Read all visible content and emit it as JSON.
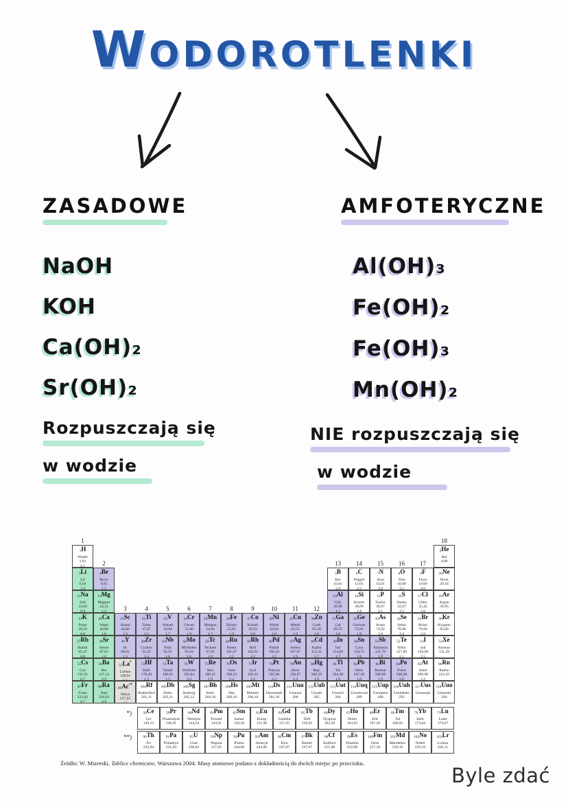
{
  "page": {
    "title": "WODOROTLENKI",
    "watermark": "Byle zdać"
  },
  "colors": {
    "title_blue": "#2456a6",
    "title_shadow": "#a3c3ec",
    "mint": "#b4e9d2",
    "lavender": "#cdc7ef",
    "table_alkali": "#abe6c6",
    "table_metal": "#c8c3e8",
    "table_special": "#e3e1de"
  },
  "left_column": {
    "heading": "ZASADOWE",
    "formulas": [
      "NaOH",
      "KOH",
      "Ca(OH)₂",
      "Sr(OH)₂"
    ],
    "note_line1": "Rozpuszczają się",
    "note_line2": "w wodzie"
  },
  "right_column": {
    "heading": "AMFOTERYCZNE",
    "formulas": [
      "Al(OH)₃",
      "Fe(OH)₂",
      "Fe(OH)₃",
      "Mn(OH)₂"
    ],
    "note_line1": "NIE rozpuszczają się",
    "note_line2": "w wodzie"
  },
  "periodic_table": {
    "source_prefix": "Źródło: W. Mizerski, ",
    "source_italic": "Tablice chemiczne",
    "source_suffix": ", Warszawa 2004. Masy atomowe podano z dokładnością do dwóch miejsc po przecinku.",
    "group_labels": [
      [
        "1",
        1,
        1
      ],
      [
        "18",
        1,
        18
      ],
      [
        "2",
        2,
        2
      ],
      [
        "13",
        2,
        13
      ],
      [
        "14",
        2,
        14
      ],
      [
        "15",
        2,
        15
      ],
      [
        "16",
        2,
        16
      ],
      [
        "17",
        2,
        17
      ],
      [
        "3",
        4,
        3
      ],
      [
        "4",
        4,
        4
      ],
      [
        "5",
        4,
        5
      ],
      [
        "6",
        4,
        6
      ],
      [
        "7",
        4,
        7
      ],
      [
        "8",
        4,
        8
      ],
      [
        "9",
        4,
        9
      ],
      [
        "10",
        4,
        10
      ],
      [
        "11",
        4,
        11
      ],
      [
        "12",
        4,
        12
      ]
    ],
    "element_fields": [
      "number",
      "symbol",
      "name",
      "mass",
      "electronegativity",
      "period",
      "column",
      "color",
      "sup"
    ],
    "elements": [
      [
        1,
        "H",
        "Wodór",
        "1,01",
        "2,1",
        1,
        1,
        "plain",
        ""
      ],
      [
        2,
        "He",
        "Hel",
        "4,00",
        "",
        1,
        18,
        "plain",
        ""
      ],
      [
        3,
        "Li",
        "Lit",
        "6,94",
        "1,0",
        2,
        1,
        "alkali",
        ""
      ],
      [
        4,
        "Be",
        "Beryl",
        "9,01",
        "1,5",
        2,
        2,
        "metal",
        ""
      ],
      [
        5,
        "B",
        "Bor",
        "10,81",
        "2,0",
        2,
        13,
        "plain",
        ""
      ],
      [
        6,
        "C",
        "Węgiel",
        "12,01",
        "2,5",
        2,
        14,
        "plain",
        ""
      ],
      [
        7,
        "N",
        "Azot",
        "14,01",
        "3,0",
        2,
        15,
        "plain",
        ""
      ],
      [
        8,
        "O",
        "Tlen",
        "16,00",
        "3,5",
        2,
        16,
        "plain",
        ""
      ],
      [
        9,
        "F",
        "Fluor",
        "19,00",
        "4,0",
        2,
        17,
        "plain",
        ""
      ],
      [
        10,
        "Ne",
        "Neon",
        "20,18",
        "",
        2,
        18,
        "plain",
        ""
      ],
      [
        11,
        "Na",
        "Sód",
        "23,00",
        "0,9",
        3,
        1,
        "alkali",
        ""
      ],
      [
        12,
        "Mg",
        "Magnez",
        "24,31",
        "1,2",
        3,
        2,
        "alkali",
        ""
      ],
      [
        13,
        "Al",
        "Glin",
        "26,98",
        "1,5",
        3,
        13,
        "metal",
        ""
      ],
      [
        14,
        "Si",
        "Krzem",
        "28,09",
        "1,8",
        3,
        14,
        "plain",
        ""
      ],
      [
        15,
        "P",
        "Fosfor",
        "30,97",
        "2,1",
        3,
        15,
        "plain",
        ""
      ],
      [
        16,
        "S",
        "Siarka",
        "32,07",
        "2,5",
        3,
        16,
        "plain",
        ""
      ],
      [
        17,
        "Cl",
        "Chlor",
        "35,45",
        "3,0",
        3,
        17,
        "plain",
        ""
      ],
      [
        18,
        "Ar",
        "Argon",
        "39,95",
        "",
        3,
        18,
        "plain",
        ""
      ],
      [
        19,
        "K",
        "Potas",
        "39,10",
        "0,8",
        4,
        1,
        "alkali",
        ""
      ],
      [
        20,
        "Ca",
        "Wapń",
        "40,08",
        "1,0",
        4,
        2,
        "alkali",
        ""
      ],
      [
        21,
        "Sc",
        "Skand",
        "44,96",
        "1,3",
        4,
        3,
        "metal",
        ""
      ],
      [
        22,
        "Ti",
        "Tytan",
        "47,87",
        "1,5",
        4,
        4,
        "metal",
        ""
      ],
      [
        23,
        "V",
        "Wanad",
        "50,94",
        "1,7",
        4,
        5,
        "metal",
        ""
      ],
      [
        24,
        "Cr",
        "Chrom",
        "52,00",
        "1,9",
        4,
        6,
        "metal",
        ""
      ],
      [
        25,
        "Mn",
        "Mangan",
        "54,94",
        "1,7",
        4,
        7,
        "metal",
        ""
      ],
      [
        26,
        "Fe",
        "Żelazo",
        "55,85",
        "1,9",
        4,
        8,
        "metal",
        ""
      ],
      [
        27,
        "Co",
        "Kobalt",
        "58,93",
        "2,0",
        4,
        9,
        "metal",
        ""
      ],
      [
        28,
        "Ni",
        "Nikiel",
        "58,69",
        "2,0",
        4,
        10,
        "metal",
        ""
      ],
      [
        29,
        "Cu",
        "Miedź",
        "63,55",
        "1,9",
        4,
        11,
        "metal",
        ""
      ],
      [
        30,
        "Zn",
        "Cynk",
        "65,39",
        "1,6",
        4,
        12,
        "metal",
        ""
      ],
      [
        31,
        "Ga",
        "Gal",
        "69,72",
        "1,6",
        4,
        13,
        "metal",
        ""
      ],
      [
        32,
        "Ge",
        "German",
        "72,61",
        "1,8",
        4,
        14,
        "metal",
        ""
      ],
      [
        33,
        "As",
        "Arsen",
        "74,92",
        "2,0",
        4,
        15,
        "plain",
        ""
      ],
      [
        34,
        "Se",
        "Selen",
        "78,96",
        "2,4",
        4,
        16,
        "plain",
        ""
      ],
      [
        35,
        "Br",
        "Brom",
        "79,90",
        "2,8",
        4,
        17,
        "plain",
        ""
      ],
      [
        36,
        "Kr",
        "Krypton",
        "83,80",
        "",
        4,
        18,
        "plain",
        ""
      ],
      [
        37,
        "Rb",
        "Rubid",
        "85,47",
        "0,8",
        5,
        1,
        "alkali",
        ""
      ],
      [
        38,
        "Sr",
        "Stront",
        "87,62",
        "1,0",
        5,
        2,
        "alkali",
        ""
      ],
      [
        39,
        "Y",
        "Itr",
        "88,91",
        "1,3",
        5,
        3,
        "metal",
        ""
      ],
      [
        40,
        "Zr",
        "Cyrkon",
        "91,22",
        "1,4",
        5,
        4,
        "metal",
        ""
      ],
      [
        41,
        "Nb",
        "Niob",
        "92,91",
        "1,6",
        5,
        5,
        "metal",
        ""
      ],
      [
        42,
        "Mo",
        "Molibden",
        "95,94",
        "2,0",
        5,
        6,
        "metal",
        ""
      ],
      [
        43,
        "Tc",
        "Technet",
        "97,91",
        "1,9",
        5,
        7,
        "metal",
        ""
      ],
      [
        44,
        "Ru",
        "Ruten",
        "101,07",
        "2,2",
        5,
        8,
        "metal",
        ""
      ],
      [
        45,
        "Rh",
        "Rod",
        "102,91",
        "2,2",
        5,
        9,
        "metal",
        ""
      ],
      [
        46,
        "Pd",
        "Pallad",
        "106,42",
        "2,2",
        5,
        10,
        "metal",
        ""
      ],
      [
        47,
        "Ag",
        "Srebro",
        "107,87",
        "1,9",
        5,
        11,
        "metal",
        ""
      ],
      [
        48,
        "Cd",
        "Kadm",
        "112,41",
        "1,7",
        5,
        12,
        "metal",
        ""
      ],
      [
        49,
        "In",
        "Ind",
        "114,82",
        "1,7",
        5,
        13,
        "metal",
        ""
      ],
      [
        50,
        "Sn",
        "Cyna",
        "118,71",
        "1,8",
        5,
        14,
        "metal",
        ""
      ],
      [
        51,
        "Sb",
        "Antymon",
        "121,76",
        "1,9",
        5,
        15,
        "metal",
        ""
      ],
      [
        52,
        "Te",
        "Tellur",
        "127,60",
        "2,1",
        5,
        16,
        "plain",
        ""
      ],
      [
        53,
        "I",
        "Jod",
        "126,90",
        "2,5",
        5,
        17,
        "plain",
        ""
      ],
      [
        54,
        "Xe",
        "Ksenon",
        "131,29",
        "",
        5,
        18,
        "plain",
        ""
      ],
      [
        55,
        "Cs",
        "Cez",
        "132,91",
        "0,7",
        6,
        1,
        "alkali",
        ""
      ],
      [
        56,
        "Ba",
        "Bar",
        "137,33",
        "0,9",
        6,
        2,
        "alkali",
        ""
      ],
      [
        57,
        "La",
        "Lantan",
        "138,91",
        "1,1",
        6,
        3,
        "special",
        "*"
      ],
      [
        72,
        "Hf",
        "Hafn",
        "178,49",
        "1,3",
        6,
        4,
        "metal",
        ""
      ],
      [
        73,
        "Ta",
        "Tantal",
        "180,95",
        "1,5",
        6,
        5,
        "metal",
        ""
      ],
      [
        74,
        "W",
        "Wolfram",
        "183,84",
        "2,0",
        6,
        6,
        "metal",
        ""
      ],
      [
        75,
        "Re",
        "Ren",
        "186,21",
        "1,9",
        6,
        7,
        "metal",
        ""
      ],
      [
        76,
        "Os",
        "Osm",
        "190,23",
        "2,2",
        6,
        8,
        "metal",
        ""
      ],
      [
        77,
        "Ir",
        "Iryd",
        "192,22",
        "2,2",
        6,
        9,
        "metal",
        ""
      ],
      [
        78,
        "Pt",
        "Platyna",
        "195,08",
        "2,2",
        6,
        10,
        "metal",
        ""
      ],
      [
        79,
        "Au",
        "Złoto",
        "196,97",
        "2,4",
        6,
        11,
        "metal",
        ""
      ],
      [
        80,
        "Hg",
        "Rtęć",
        "200,59",
        "1,9",
        6,
        12,
        "metal",
        ""
      ],
      [
        81,
        "Tl",
        "Tal",
        "204,38",
        "1,8",
        6,
        13,
        "metal",
        ""
      ],
      [
        82,
        "Pb",
        "Ołów",
        "207,20",
        "1,8",
        6,
        14,
        "metal",
        ""
      ],
      [
        83,
        "Bi",
        "Bizmut",
        "208,98",
        "1,9",
        6,
        15,
        "metal",
        ""
      ],
      [
        84,
        "Po",
        "Polon",
        "208,98",
        "2,0",
        6,
        16,
        "metal",
        ""
      ],
      [
        85,
        "At",
        "Astat",
        "209,99",
        "2,2",
        6,
        17,
        "plain",
        ""
      ],
      [
        86,
        "Rn",
        "Radon",
        "222,02",
        "",
        6,
        18,
        "plain",
        ""
      ],
      [
        87,
        "Fr",
        "Frans",
        "223,02",
        "0,7",
        7,
        1,
        "alkali",
        ""
      ],
      [
        88,
        "Ra",
        "Rad",
        "226,03",
        "0,9",
        7,
        2,
        "alkali",
        ""
      ],
      [
        89,
        "Ac",
        "Aktyn",
        "227,03",
        "1,1",
        7,
        3,
        "special",
        "**"
      ],
      [
        104,
        "Rf",
        "Rutherford",
        "261,11",
        "",
        7,
        4,
        "plain",
        ""
      ],
      [
        105,
        "Db",
        "Dubn",
        "263,11",
        "",
        7,
        5,
        "plain",
        ""
      ],
      [
        106,
        "Sg",
        "Seaborg",
        "265,12",
        "",
        7,
        6,
        "plain",
        ""
      ],
      [
        107,
        "Bh",
        "Bohr",
        "264,10",
        "",
        7,
        7,
        "plain",
        ""
      ],
      [
        108,
        "Hs",
        "Has",
        "269,10",
        "",
        7,
        8,
        "plain",
        ""
      ],
      [
        109,
        "Mt",
        "Meitner",
        "268,10",
        "",
        7,
        9,
        "plain",
        ""
      ],
      [
        110,
        "Ds",
        "Darmstadt",
        "281,10",
        "",
        7,
        10,
        "plain",
        ""
      ],
      [
        111,
        "Uuu",
        "Ununun",
        "280",
        "",
        7,
        11,
        "plain",
        ""
      ],
      [
        112,
        "Uub",
        "Ununb",
        "285",
        "",
        7,
        12,
        "plain",
        ""
      ],
      [
        113,
        "Uut",
        "Ununtri",
        "284",
        "",
        7,
        13,
        "plain",
        ""
      ],
      [
        114,
        "Uuq",
        "Ununkwad",
        "289",
        "",
        7,
        14,
        "plain",
        ""
      ],
      [
        115,
        "Uup",
        "Ununpent",
        "288",
        "",
        7,
        15,
        "plain",
        ""
      ],
      [
        116,
        "Uuh",
        "Ununheks",
        "292",
        "",
        7,
        16,
        "plain",
        ""
      ],
      [
        117,
        "Uus",
        "Ununsept",
        "",
        "",
        7,
        17,
        "plain",
        ""
      ],
      [
        118,
        "Uuo",
        "Ununokt",
        "294",
        "",
        7,
        18,
        "plain",
        ""
      ]
    ],
    "lanthanide_marker": "*)",
    "lanthanides": [
      [
        58,
        "Ce",
        "Cer",
        "140,12"
      ],
      [
        59,
        "Pr",
        "Prazeodym",
        "140,91"
      ],
      [
        60,
        "Nd",
        "Neodym",
        "144,24"
      ],
      [
        61,
        "Pm",
        "Promet",
        "144,91"
      ],
      [
        62,
        "Sm",
        "Samar",
        "150,36"
      ],
      [
        63,
        "Eu",
        "Europ",
        "151,96"
      ],
      [
        64,
        "Gd",
        "Gadolin",
        "157,25"
      ],
      [
        65,
        "Tb",
        "Terb",
        "158,93"
      ],
      [
        66,
        "Dy",
        "Dysproz",
        "162,50"
      ],
      [
        67,
        "Ho",
        "Holm",
        "164,93"
      ],
      [
        68,
        "Er",
        "Erb",
        "167,26"
      ],
      [
        69,
        "Tm",
        "Tul",
        "168,93"
      ],
      [
        70,
        "Yb",
        "Iterb",
        "173,04"
      ],
      [
        71,
        "Lu",
        "Lutet",
        "174,97"
      ]
    ],
    "actinide_marker": "**)",
    "actinides": [
      [
        90,
        "Th",
        "Tor",
        "232,04"
      ],
      [
        91,
        "Pa",
        "Protaktyn",
        "231,04"
      ],
      [
        92,
        "U",
        "Uran",
        "238,03"
      ],
      [
        93,
        "Np",
        "Neptun",
        "237,05"
      ],
      [
        94,
        "Pu",
        "Pluton",
        "244,06"
      ],
      [
        95,
        "Am",
        "Ameryk",
        "243,06"
      ],
      [
        96,
        "Cm",
        "Kiur",
        "247,07"
      ],
      [
        97,
        "Bk",
        "Berkel",
        "247,07"
      ],
      [
        98,
        "Cf",
        "Kaliforn",
        "251,08"
      ],
      [
        99,
        "Es",
        "Einstein",
        "252,09"
      ],
      [
        100,
        "Fm",
        "Ferm",
        "257,10"
      ],
      [
        101,
        "Md",
        "Mendelew",
        "258,10"
      ],
      [
        102,
        "No",
        "Nobel",
        "259,10"
      ],
      [
        103,
        "Lr",
        "Lorens",
        "262,11"
      ]
    ]
  }
}
